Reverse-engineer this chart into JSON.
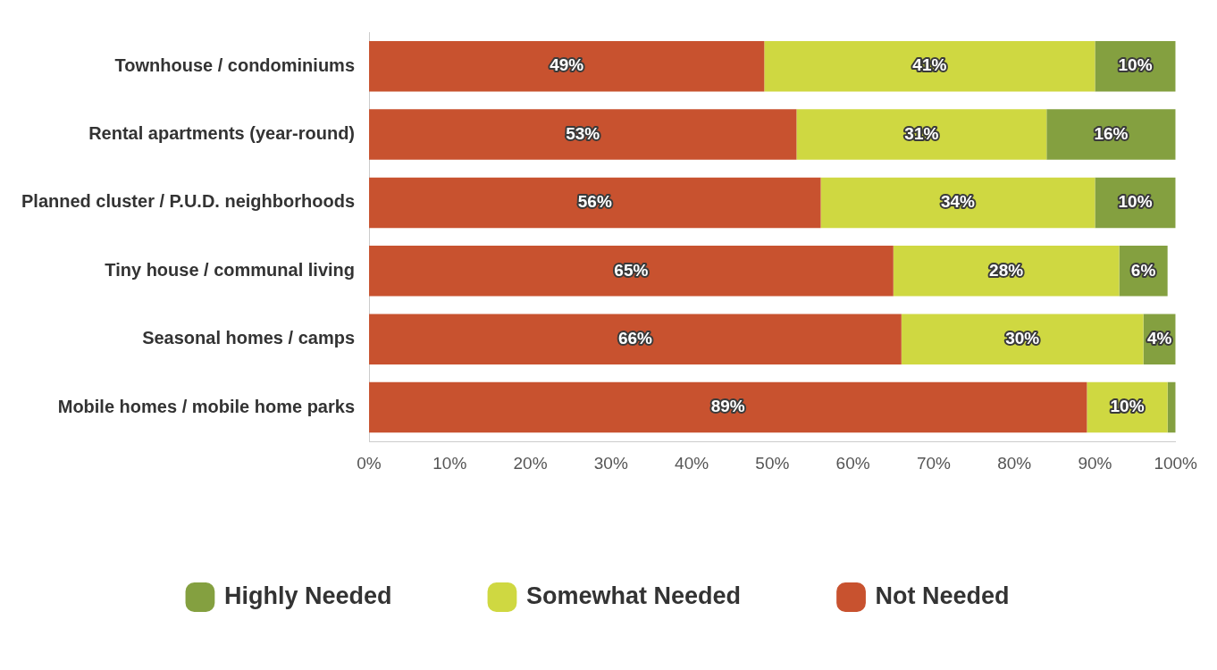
{
  "chart_data": {
    "type": "bar",
    "orientation": "horizontal",
    "stacked": true,
    "categories": [
      "Townhouse / condominiums",
      "Rental apartments (year-round)",
      "Planned cluster / P.U.D. neighborhoods",
      "Tiny house / communal living",
      "Seasonal homes / camps",
      "Mobile homes / mobile home parks"
    ],
    "series": [
      {
        "name": "Not Needed",
        "color": "#c8522f",
        "values": [
          49,
          53,
          56,
          65,
          66,
          89
        ],
        "value_labels": [
          "49%",
          "53%",
          "56%",
          "65%",
          "66%",
          "89%"
        ]
      },
      {
        "name": "Somewhat Needed",
        "color": "#cfd841",
        "values": [
          41,
          31,
          34,
          28,
          30,
          10
        ],
        "value_labels": [
          "41%",
          "31%",
          "34%",
          "28%",
          "30%",
          "10%"
        ]
      },
      {
        "name": "Highly Needed",
        "color": "#84a040",
        "values": [
          10,
          16,
          10,
          6,
          4,
          1
        ],
        "value_labels": [
          "10%",
          "16%",
          "10%",
          "6%",
          "4%",
          null
        ]
      }
    ],
    "xlim": [
      0,
      100
    ],
    "xticks": [
      {
        "value": 0,
        "label": "0%"
      },
      {
        "value": 10,
        "label": "10%"
      },
      {
        "value": 20,
        "label": "20%"
      },
      {
        "value": 30,
        "label": "30%"
      },
      {
        "value": 40,
        "label": "40%"
      },
      {
        "value": 50,
        "label": "50%"
      },
      {
        "value": 60,
        "label": "60%"
      },
      {
        "value": 70,
        "label": "70%"
      },
      {
        "value": 80,
        "label": "80%"
      },
      {
        "value": 90,
        "label": "90%"
      },
      {
        "value": 100,
        "label": "100%"
      }
    ],
    "grid": false,
    "legend": "bottom"
  }
}
